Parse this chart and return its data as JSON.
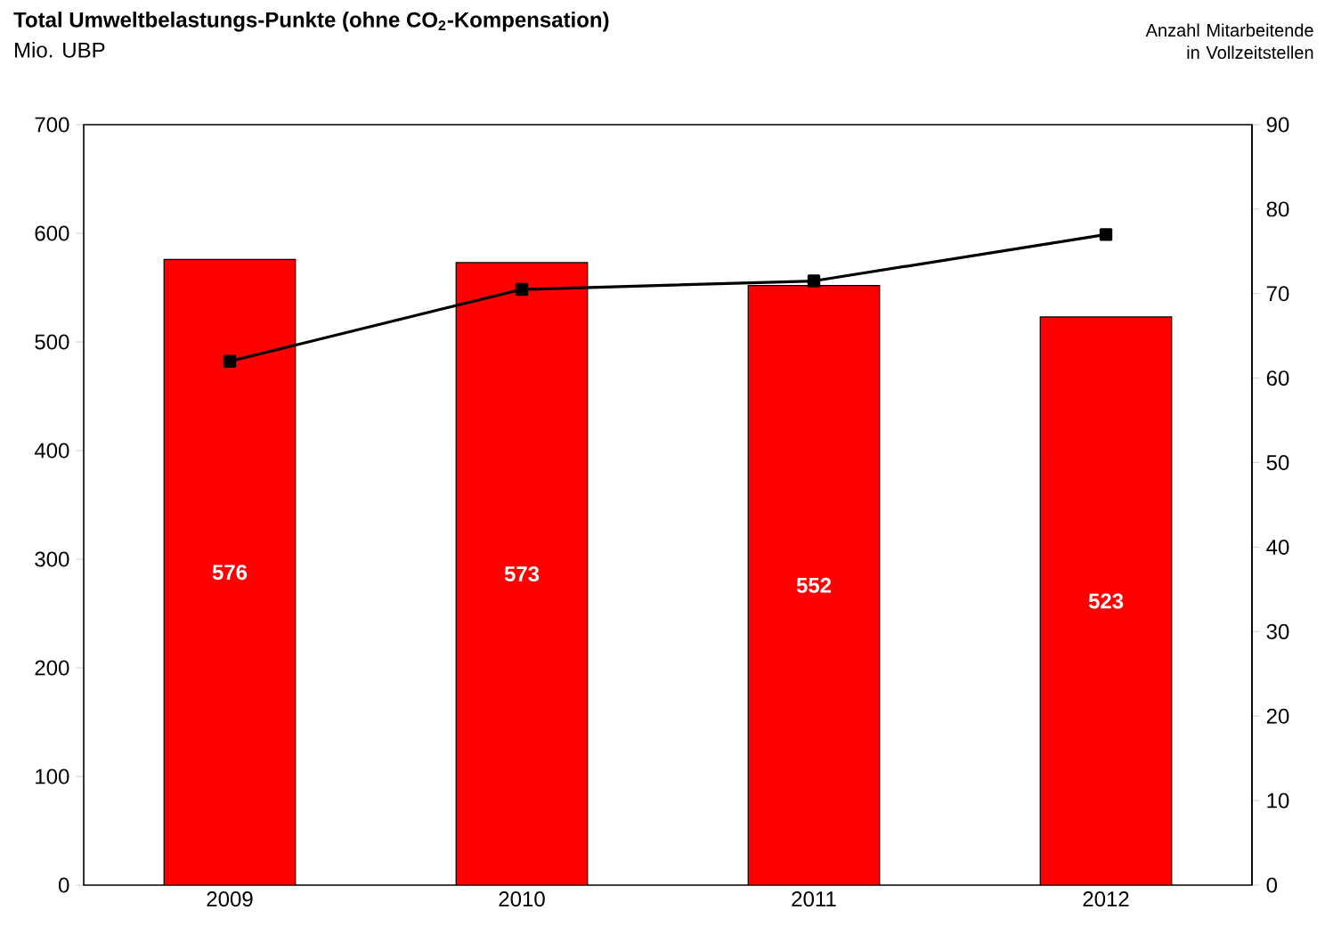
{
  "chart_data": {
    "type": "bar",
    "title": "Total Umweltbelastungs-Punkte  (ohne CO$_{2}$-Kompensation)",
    "ylabel": "Mio. UBP",
    "y2label": "Anzahl Mitarbeitende in Vollzeitstellen",
    "categories": [
      "2009",
      "2010",
      "2011",
      "2012"
    ],
    "series": [
      {
        "color": "#ff0000",
        "values": [
          576,
          573,
          552,
          523
        ],
        "value_labels": [
          "576",
          "573",
          "552",
          "523"
        ]
      },
      {
        "type": "line",
        "axis": "y2",
        "color": "#000000",
        "values": [
          62,
          70.5,
          71.5,
          77
        ]
      }
    ],
    "ylim": [
      0,
      700
    ],
    "yticks": [
      0,
      100,
      200,
      300,
      400,
      500,
      600,
      700
    ],
    "y2lim": [
      0,
      90
    ],
    "y2ticks": [
      0,
      10,
      20,
      30,
      40,
      50,
      60,
      70,
      80,
      90
    ],
    "grid": false,
    "marker": "square",
    "line_style": "solid"
  }
}
